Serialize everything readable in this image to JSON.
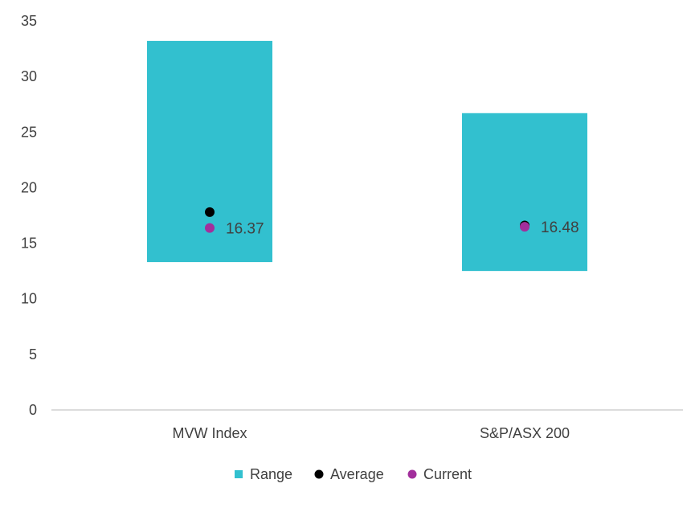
{
  "chart_data": {
    "type": "bar",
    "title": "",
    "xlabel": "",
    "ylabel": "",
    "ylim": [
      0,
      35
    ],
    "yticks": [
      0,
      5,
      10,
      15,
      20,
      25,
      30,
      35
    ],
    "grid": false,
    "categories": [
      "MVW Index",
      "S&P/ASX 200"
    ],
    "series": [
      {
        "name": "Range",
        "type": "floating-bar",
        "low": [
          13.3,
          12.5
        ],
        "high": [
          33.2,
          26.7
        ],
        "color": "#32C0CF"
      },
      {
        "name": "Average",
        "type": "marker",
        "values": [
          17.8,
          16.6
        ],
        "color": "#000000"
      },
      {
        "name": "Current",
        "type": "marker",
        "values": [
          16.37,
          16.48
        ],
        "color": "#A22F9C",
        "data_labels": [
          "16.37",
          "16.48"
        ]
      }
    ],
    "legend": {
      "position": "bottom",
      "items": [
        "Range",
        "Average",
        "Current"
      ]
    }
  }
}
